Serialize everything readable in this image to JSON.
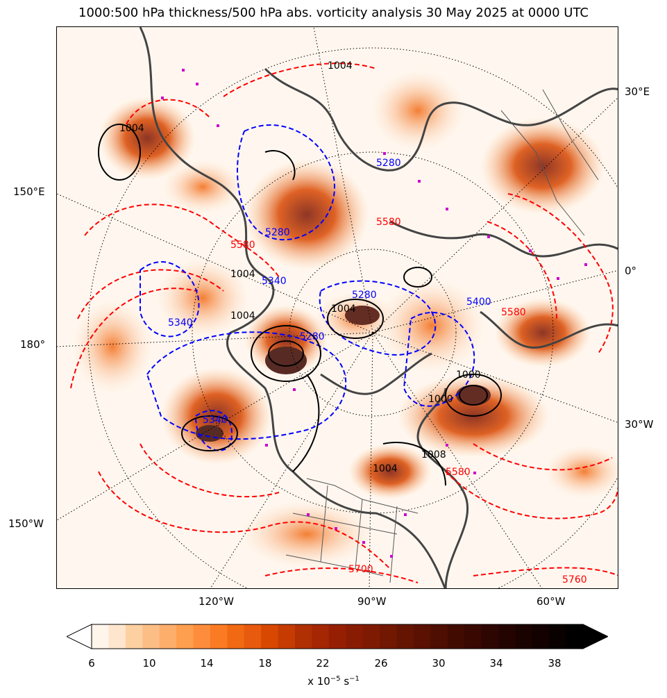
{
  "title": "1000:500 hPa thickness/500 hPa abs. vorticity analysis 30 May 2025 at 0000 UTC",
  "map": {
    "lon_labels_left": [
      "150°E",
      "180°",
      "150°W"
    ],
    "lon_labels_right": [
      "30°E",
      "0°",
      "30°W"
    ],
    "lon_labels_bottom": [
      "120°W",
      "90°W",
      "60°W"
    ],
    "colors": {
      "thickness_warm": "#ff0000",
      "thickness_cold": "#0000ff",
      "mslp": "#000000",
      "coastline": "#444444",
      "station_marker": "#cc00cc"
    },
    "contour_labels": {
      "mslp": [
        "1004",
        "1004",
        "1004",
        "1004",
        "1000",
        "1000",
        "1004",
        "1008",
        "1004"
      ],
      "thickness_cold": [
        "5280",
        "5340",
        "5340",
        "5280",
        "5280",
        "5340",
        "5400",
        "5280"
      ],
      "thickness_warm": [
        "5580",
        "5580",
        "5700",
        "5760",
        "5580",
        "5580"
      ]
    }
  },
  "colorbar": {
    "tick_labels": [
      "6",
      "10",
      "14",
      "18",
      "22",
      "26",
      "30",
      "34",
      "38"
    ],
    "unit_label": "x 10",
    "unit_exp1": "−5",
    "unit_mid": " s",
    "unit_exp2": "−1",
    "colors": [
      "#fff5eb",
      "#fee6ce",
      "#fdd0a2",
      "#fdbe85",
      "#fdae6b",
      "#fd9f4f",
      "#fd8d3c",
      "#fb7b24",
      "#f16913",
      "#e85a0d",
      "#d94801",
      "#c53b02",
      "#b02f03",
      "#a52603",
      "#961f03",
      "#881c02",
      "#7f1a02",
      "#721702",
      "#661402",
      "#5a1101",
      "#4e0e01",
      "#420b01",
      "#380801",
      "#2e0601",
      "#240401",
      "#1a0200",
      "#120100",
      "#090000",
      "#000000"
    ]
  }
}
